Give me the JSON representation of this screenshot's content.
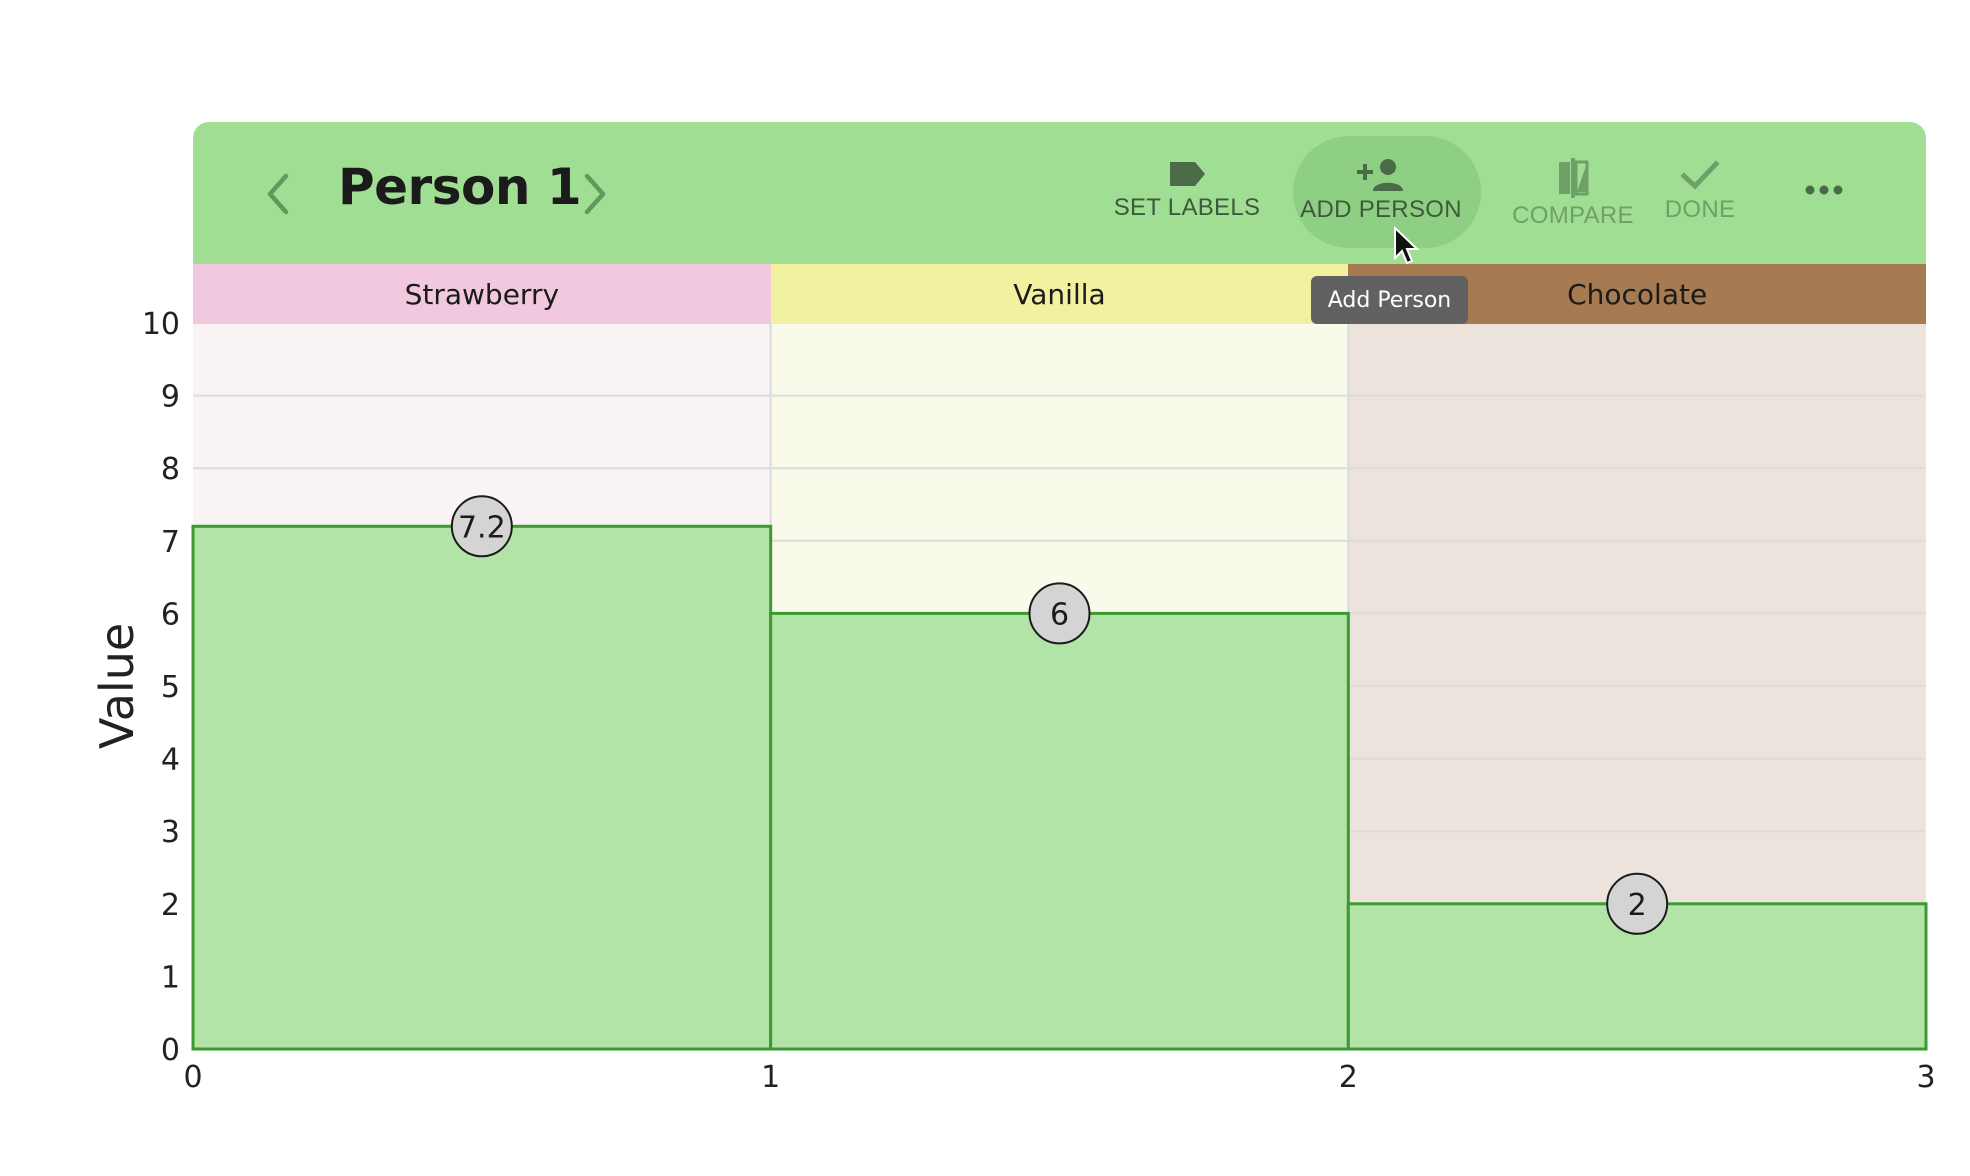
{
  "toolbar": {
    "title": "Person 1",
    "prev_icon": "chevron-left-icon",
    "next_icon": "chevron-right-icon",
    "actions": {
      "set_labels": {
        "label": "SET LABELS",
        "icon": "label-tag-icon"
      },
      "add_person": {
        "label": "ADD PERSON",
        "icon": "person-add-icon"
      },
      "compare": {
        "label": "COMPARE",
        "icon": "compare-icon"
      },
      "done": {
        "label": "DONE",
        "icon": "check-icon"
      },
      "more": {
        "icon": "more-horizontal-icon"
      }
    },
    "background": "#a0de93"
  },
  "tooltip": {
    "text": "Add Person"
  },
  "chart_data": {
    "type": "bar",
    "categories": [
      "Strawberry",
      "Vanilla",
      "Chocolate"
    ],
    "category_colors": [
      "#f2c8de",
      "#f1f19f",
      "#a67b52"
    ],
    "category_tints": [
      "#f9f3f5",
      "#f9faea",
      "#ece3dd"
    ],
    "values": [
      7.2,
      6,
      2
    ],
    "value_labels": [
      "7.2",
      "6",
      "2"
    ],
    "bar_color": "#b2e3a7",
    "bar_edge_color": "#3b9a30",
    "xticks": [
      "0",
      "1",
      "2",
      "3"
    ],
    "yticks": [
      "0",
      "1",
      "2",
      "3",
      "4",
      "5",
      "6",
      "7",
      "8",
      "9",
      "10"
    ],
    "xlim": [
      0,
      3
    ],
    "ylim": [
      0,
      10
    ],
    "ylabel": "Value",
    "xlabel": "",
    "grid": true
  }
}
